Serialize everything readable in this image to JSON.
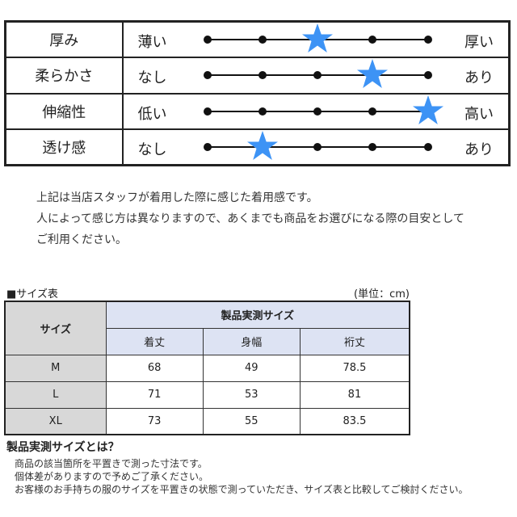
{
  "feel_table": [
    {
      "name": "厚み",
      "low": "薄い",
      "high": "厚い",
      "level": 3,
      "of": 5
    },
    {
      "name": "柔らかさ",
      "low": "なし",
      "high": "あり",
      "level": 4,
      "of": 5
    },
    {
      "name": "伸縮性",
      "low": "低い",
      "high": "高い",
      "level": 5,
      "of": 5
    },
    {
      "name": "透け感",
      "low": "なし",
      "high": "あり",
      "level": 2,
      "of": 5
    }
  ],
  "star_color": "#3d93f5",
  "notes": [
    "上記は当店スタッフが着用した際に感じた着用感です。",
    "人によって感じ方は異なりますので、あくまでも商品をお選びになる際の目安として",
    "ご利用ください。"
  ],
  "size_table": {
    "title": "■サイズ表",
    "unit": "(単位：cm)",
    "size_header": "サイズ",
    "group_header": "製品実測サイズ",
    "columns": [
      "着丈",
      "身幅",
      "裄丈"
    ],
    "rows": [
      [
        "M",
        "68",
        "49",
        "78.5"
      ],
      [
        "L",
        "71",
        "53",
        "81"
      ],
      [
        "XL",
        "73",
        "55",
        "83.5"
      ]
    ]
  },
  "definition": {
    "title": "製品実測サイズとは？",
    "lines": [
      "商品の該当箇所を平置きで測った寸法です。",
      "個体差がありますので予めご了承ください。",
      "お客様のお手持ちの服のサイズを平置きの状態で測っていただき、サイズ表と比較してご検討ください。"
    ]
  }
}
